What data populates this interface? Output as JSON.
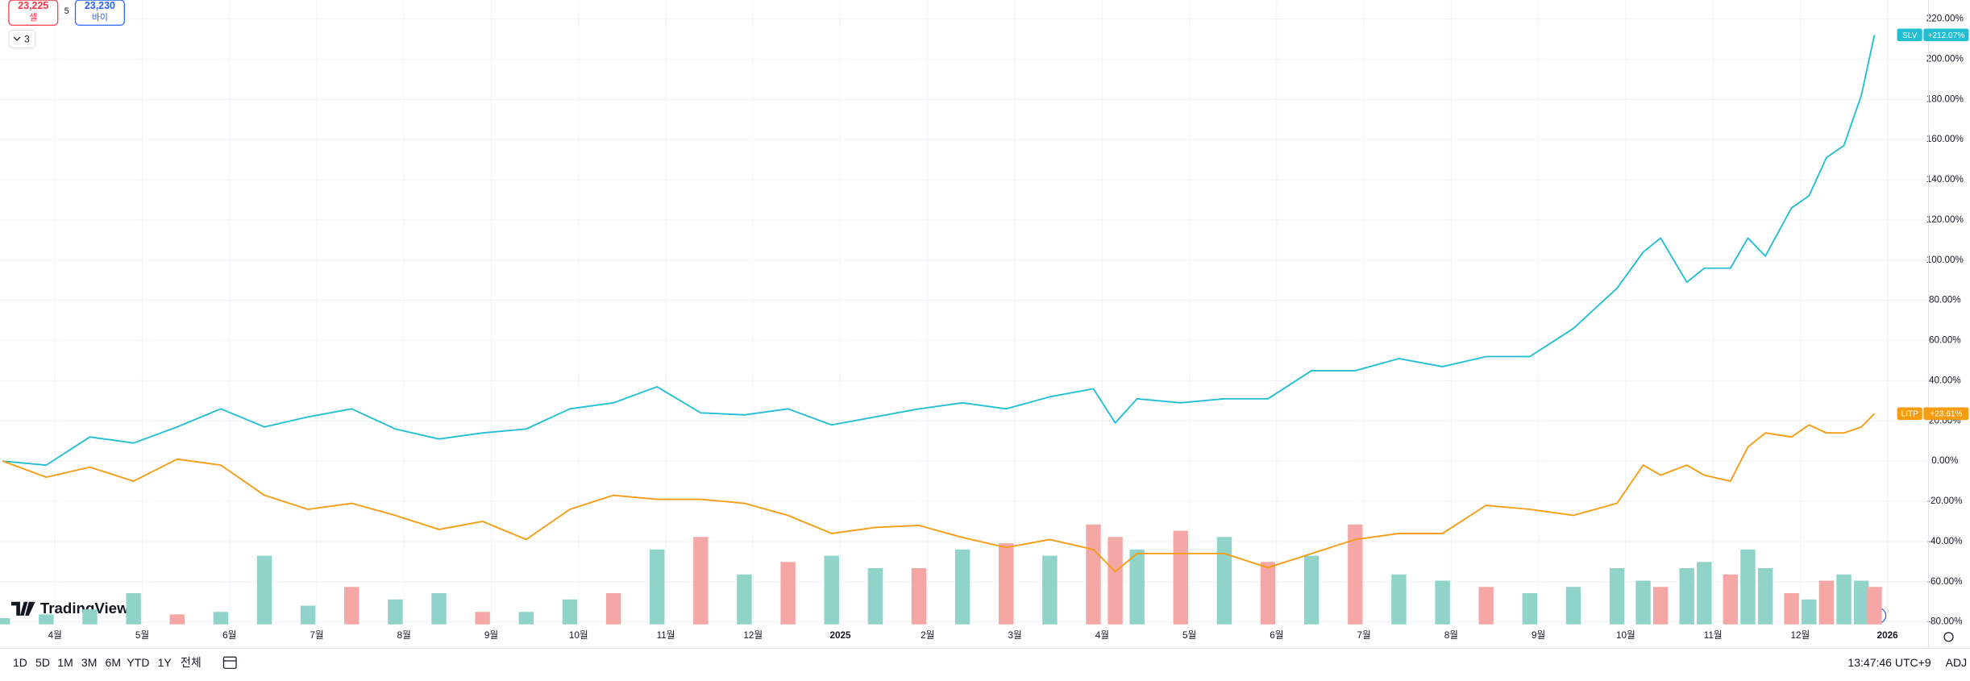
{
  "header": {
    "sell_price": "23,225",
    "sell_label": "셀",
    "spread": "5",
    "buy_price": "23,230",
    "buy_label": "바이",
    "indicators_count": "3"
  },
  "branding": "TradingView",
  "toolbar": {
    "ranges": [
      "1D",
      "5D",
      "1M",
      "3M",
      "6M",
      "YTD",
      "1Y",
      "전체"
    ],
    "clock": "13:47:46 UTC+9",
    "adj": "ADJ"
  },
  "chart_data": {
    "type": "line",
    "x": [
      -0.6,
      -0.1,
      0.4,
      0.9,
      1.4,
      1.9,
      2.4,
      2.9,
      3.4,
      3.9,
      4.4,
      4.9,
      5.4,
      5.9,
      6.4,
      6.9,
      7.4,
      7.9,
      8.4,
      8.9,
      9.4,
      9.9,
      10.4,
      10.9,
      11.4,
      11.9,
      12.15,
      12.4,
      12.9,
      13.4,
      13.9,
      14.4,
      14.9,
      15.4,
      15.9,
      16.4,
      16.9,
      17.4,
      17.9,
      18.2,
      18.4,
      18.7,
      18.9,
      19.2,
      19.4,
      19.6,
      19.9,
      20.1,
      20.3,
      20.5,
      20.7,
      20.85
    ],
    "series": [
      {
        "name": "SLV",
        "color": "#22bfd4",
        "last_value_label": "+212.07%",
        "values": [
          0,
          -2,
          12,
          9,
          17,
          26,
          17,
          22,
          26,
          16,
          11,
          14,
          16,
          26,
          29,
          37,
          24,
          23,
          26,
          18,
          22,
          26,
          29,
          26,
          32,
          36,
          19,
          31,
          29,
          31,
          31,
          45,
          45,
          51,
          47,
          52,
          52,
          66,
          86,
          104,
          111,
          89,
          96,
          96,
          111,
          102,
          126,
          132,
          151,
          157,
          182,
          212.07
        ]
      },
      {
        "name": "LITP",
        "color": "#f59c12",
        "last_value_label": "+23.61%",
        "values": [
          0,
          -8,
          -3,
          -10,
          1,
          -2,
          -17,
          -24,
          -21,
          -27,
          -34,
          -30,
          -39,
          -24,
          -17,
          -19,
          -19,
          -21,
          -27,
          -36,
          -33,
          -32,
          -38,
          -43,
          -39,
          -44,
          -55,
          -46,
          -46,
          -46,
          -53,
          -46,
          -39,
          -36,
          -36,
          -22,
          -24,
          -27,
          -21,
          -2,
          -7,
          -2,
          -7,
          -10,
          7,
          14,
          12,
          18,
          14,
          14,
          17,
          23.61
        ]
      }
    ],
    "volume": {
      "lim": [
        0,
        500
      ],
      "values": [
        5,
        8,
        12,
        25,
        8,
        10,
        55,
        15,
        30,
        20,
        25,
        10,
        10,
        20,
        25,
        60,
        70,
        40,
        50,
        55,
        45,
        45,
        60,
        65,
        55,
        80,
        70,
        60,
        75,
        70,
        50,
        55,
        80,
        40,
        35,
        30,
        25,
        30,
        45,
        35,
        30,
        45,
        50,
        40,
        60,
        45,
        25,
        20,
        35,
        40,
        35,
        30
      ],
      "colors": [
        "#8fd3c9",
        "#8fd3c9",
        "#8fd3c9",
        "#8fd3c9",
        "#f5a7a5",
        "#8fd3c9",
        "#8fd3c9",
        "#8fd3c9",
        "#f5a7a5",
        "#8fd3c9",
        "#8fd3c9",
        "#f5a7a5",
        "#8fd3c9",
        "#8fd3c9",
        "#f5a7a5",
        "#8fd3c9",
        "#f5a7a5",
        "#8fd3c9",
        "#f5a7a5",
        "#8fd3c9",
        "#8fd3c9",
        "#f5a7a5",
        "#8fd3c9",
        "#f5a7a5",
        "#8fd3c9",
        "#f5a7a5",
        "#f5a7a5",
        "#8fd3c9",
        "#f5a7a5",
        "#8fd3c9",
        "#f5a7a5",
        "#8fd3c9",
        "#f5a7a5",
        "#8fd3c9",
        "#8fd3c9",
        "#f5a7a5",
        "#8fd3c9",
        "#8fd3c9",
        "#8fd3c9",
        "#8fd3c9",
        "#f5a7a5",
        "#8fd3c9",
        "#8fd3c9",
        "#f5a7a5",
        "#8fd3c9",
        "#8fd3c9",
        "#f5a7a5",
        "#8fd3c9",
        "#f5a7a5",
        "#8fd3c9",
        "#8fd3c9",
        "#f5a7a5"
      ]
    },
    "xlim": [
      -0.63,
      21.47
    ],
    "xticks": [
      {
        "value": 0,
        "label": "4월"
      },
      {
        "value": 1,
        "label": "5월"
      },
      {
        "value": 2,
        "label": "6월"
      },
      {
        "value": 3,
        "label": "7월"
      },
      {
        "value": 4,
        "label": "8월"
      },
      {
        "value": 5,
        "label": "9월"
      },
      {
        "value": 6,
        "label": "10월"
      },
      {
        "value": 7,
        "label": "11월"
      },
      {
        "value": 8,
        "label": "12월"
      },
      {
        "value": 9,
        "label": "2025"
      },
      {
        "value": 10,
        "label": "2월"
      },
      {
        "value": 11,
        "label": "3월"
      },
      {
        "value": 12,
        "label": "4월"
      },
      {
        "value": 13,
        "label": "5월"
      },
      {
        "value": 14,
        "label": "6월"
      },
      {
        "value": 15,
        "label": "7월"
      },
      {
        "value": 16,
        "label": "8월"
      },
      {
        "value": 17,
        "label": "9월"
      },
      {
        "value": 18,
        "label": "10월"
      },
      {
        "value": 19,
        "label": "11월"
      },
      {
        "value": 20,
        "label": "12월"
      },
      {
        "value": 21,
        "label": "2026"
      }
    ],
    "ylim": [
      -81.25,
      229.4
    ],
    "yticks": [
      {
        "value": 220,
        "label": "220.00%"
      },
      {
        "value": 200,
        "label": "200.00%"
      },
      {
        "value": 180,
        "label": "180.00%"
      },
      {
        "value": 160,
        "label": "160.00%"
      },
      {
        "value": 140,
        "label": "140.00%"
      },
      {
        "value": 120,
        "label": "120.00%"
      },
      {
        "value": 100,
        "label": "100.00%"
      },
      {
        "value": 80,
        "label": "80.00%"
      },
      {
        "value": 60,
        "label": "60.00%"
      },
      {
        "value": 40,
        "label": "40.00%"
      },
      {
        "value": 20,
        "label": "20.00%"
      },
      {
        "value": 0,
        "label": "0.00%"
      },
      {
        "value": -20,
        "label": "-20.00%"
      },
      {
        "value": -40,
        "label": "-40.00%"
      },
      {
        "value": -60,
        "label": "-60.00%"
      },
      {
        "value": -80,
        "label": "-80.00%"
      }
    ],
    "grid": true
  }
}
